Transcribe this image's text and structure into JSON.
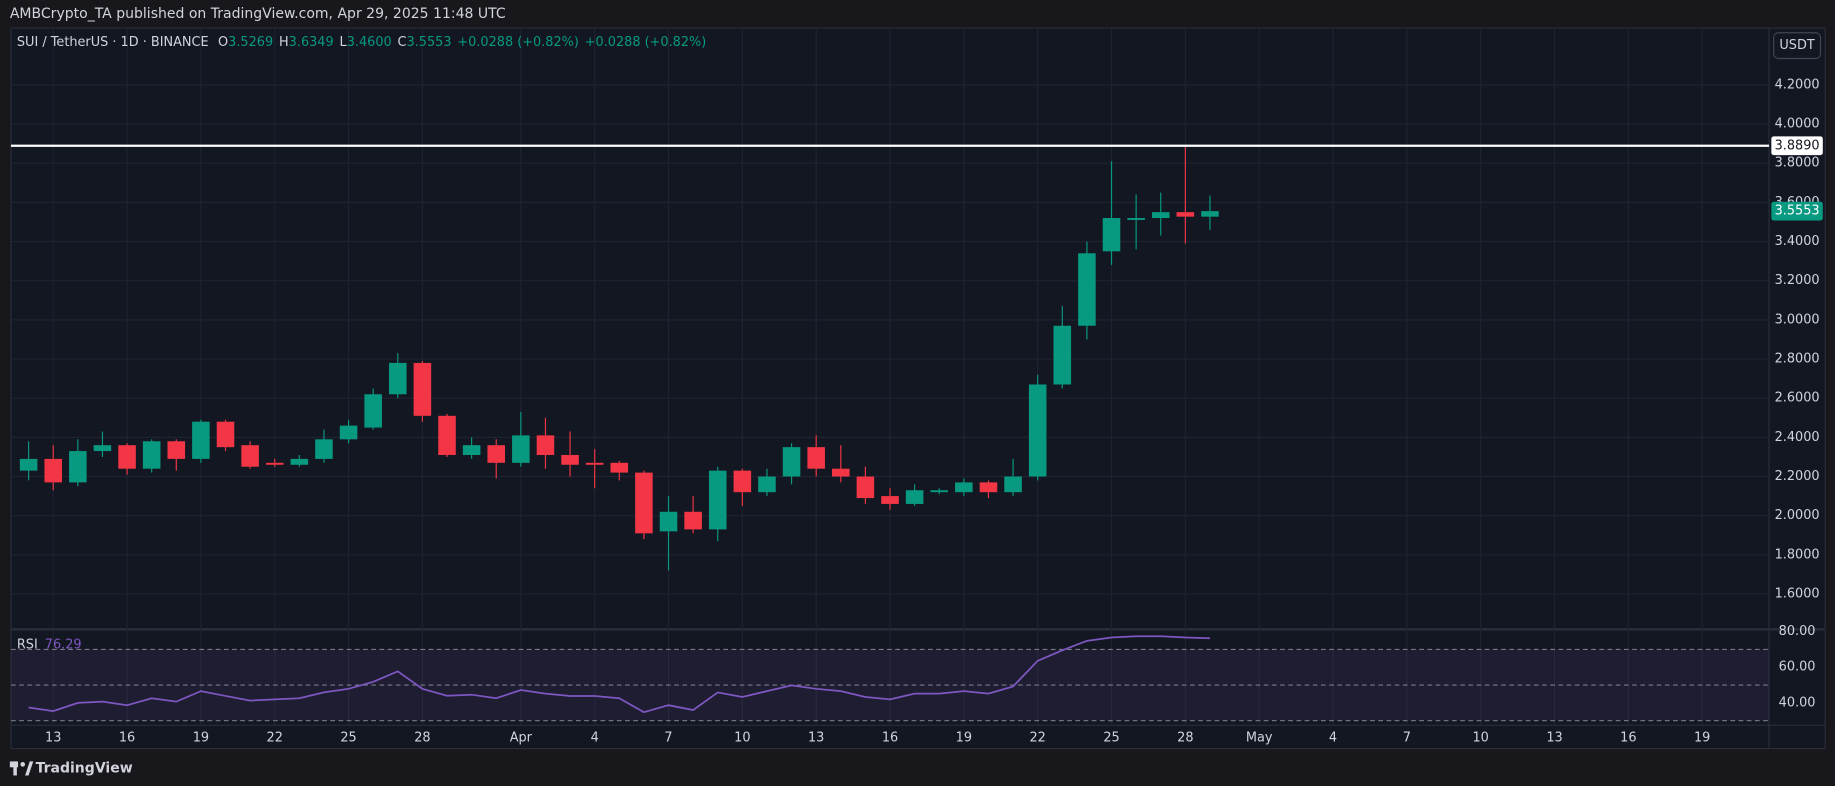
{
  "header": {
    "published": "AMBCrypto_TA published on TradingView.com, Apr 29, 2025 11:48 UTC",
    "brand": "TradingView"
  },
  "chart_data": {
    "type": "candlestick",
    "title": "SUI / TetherUS · 1D · BINANCE",
    "legend": {
      "items": [
        {
          "label": "O",
          "value": "3.5269"
        },
        {
          "label": "H",
          "value": "3.6349"
        },
        {
          "label": "L",
          "value": "3.4600"
        },
        {
          "label": "C",
          "value": "3.5553"
        }
      ],
      "changes": [
        "+0.0288 (+0.82%)",
        "+0.0288 (+0.82%)"
      ]
    },
    "axis_unit": "USDT",
    "categories": [
      "Mar 12",
      "Mar 13",
      "Mar 14",
      "Mar 15",
      "Mar 16",
      "Mar 17",
      "Mar 18",
      "Mar 19",
      "Mar 20",
      "Mar 21",
      "Mar 22",
      "Mar 23",
      "Mar 24",
      "Mar 25",
      "Mar 26",
      "Mar 27",
      "Mar 28",
      "Mar 29",
      "Mar 30",
      "Mar 31",
      "Apr 1",
      "Apr 2",
      "Apr 3",
      "Apr 4",
      "Apr 5",
      "Apr 6",
      "Apr 7",
      "Apr 8",
      "Apr 9",
      "Apr 10",
      "Apr 11",
      "Apr 12",
      "Apr 13",
      "Apr 14",
      "Apr 15",
      "Apr 16",
      "Apr 17",
      "Apr 18",
      "Apr 19",
      "Apr 20",
      "Apr 21",
      "Apr 22",
      "Apr 23",
      "Apr 24",
      "Apr 25",
      "Apr 26",
      "Apr 27",
      "Apr 28",
      "Apr 29"
    ],
    "open": [
      2.23,
      2.29,
      2.17,
      2.33,
      2.36,
      2.24,
      2.38,
      2.29,
      2.48,
      2.36,
      2.27,
      2.26,
      2.29,
      2.39,
      2.45,
      2.62,
      2.78,
      2.51,
      2.31,
      2.36,
      2.27,
      2.41,
      2.31,
      2.27,
      2.27,
      2.22,
      1.92,
      2.02,
      1.93,
      2.23,
      2.12,
      2.2,
      2.35,
      2.24,
      2.2,
      2.1,
      2.06,
      2.12,
      2.12,
      2.17,
      2.12,
      2.2,
      2.67,
      2.97,
      3.35,
      3.51,
      3.52,
      3.55,
      3.5269
    ],
    "high": [
      2.38,
      2.36,
      2.39,
      2.43,
      2.37,
      2.39,
      2.39,
      2.49,
      2.49,
      2.38,
      2.29,
      2.31,
      2.44,
      2.49,
      2.65,
      2.83,
      2.79,
      2.52,
      2.4,
      2.39,
      2.53,
      2.5,
      2.43,
      2.34,
      2.28,
      2.23,
      2.1,
      2.1,
      2.25,
      2.24,
      2.24,
      2.37,
      2.41,
      2.36,
      2.25,
      2.14,
      2.16,
      2.14,
      2.19,
      2.18,
      2.29,
      2.72,
      3.07,
      3.4,
      3.81,
      3.64,
      3.65,
      3.889,
      3.6349
    ],
    "low": [
      2.18,
      2.13,
      2.15,
      2.3,
      2.21,
      2.22,
      2.23,
      2.27,
      2.33,
      2.24,
      2.25,
      2.25,
      2.27,
      2.37,
      2.44,
      2.6,
      2.48,
      2.3,
      2.29,
      2.19,
      2.25,
      2.24,
      2.2,
      2.14,
      2.18,
      1.88,
      1.72,
      1.91,
      1.87,
      2.05,
      2.1,
      2.16,
      2.2,
      2.17,
      2.06,
      2.03,
      2.05,
      2.11,
      2.1,
      2.09,
      2.1,
      2.18,
      2.65,
      2.9,
      3.28,
      3.36,
      3.43,
      3.39,
      3.46
    ],
    "close": [
      2.29,
      2.17,
      2.33,
      2.36,
      2.24,
      2.38,
      2.29,
      2.48,
      2.35,
      2.25,
      2.26,
      2.29,
      2.39,
      2.46,
      2.62,
      2.78,
      2.51,
      2.31,
      2.36,
      2.27,
      2.41,
      2.31,
      2.26,
      2.26,
      2.22,
      1.91,
      2.02,
      1.93,
      2.23,
      2.12,
      2.2,
      2.35,
      2.24,
      2.2,
      2.09,
      2.06,
      2.13,
      2.13,
      2.17,
      2.12,
      2.2,
      2.67,
      2.97,
      3.34,
      3.52,
      3.52,
      3.55,
      3.5269,
      3.5553
    ],
    "colors": {
      "up": "#089981",
      "down": "#f23645"
    },
    "ylim": [
      1.42,
      4.49
    ],
    "yticks": [
      {
        "value": 1.6,
        "label": "1.6000"
      },
      {
        "value": 1.8,
        "label": "1.8000"
      },
      {
        "value": 2,
        "label": "2.0000"
      },
      {
        "value": 2.2,
        "label": "2.2000"
      },
      {
        "value": 2.4,
        "label": "2.4000"
      },
      {
        "value": 2.6,
        "label": "2.6000"
      },
      {
        "value": 2.8,
        "label": "2.8000"
      },
      {
        "value": 3,
        "label": "3.0000"
      },
      {
        "value": 3.2,
        "label": "3.2000"
      },
      {
        "value": 3.4,
        "label": "3.4000"
      },
      {
        "value": 3.6,
        "label": "3.6000"
      },
      {
        "value": 3.8,
        "label": "3.8000"
      },
      {
        "value": 4,
        "label": "4.0000"
      },
      {
        "value": 4.2,
        "label": "4.2000"
      }
    ],
    "xlim": [
      "Mar 11",
      "May 22"
    ],
    "xticks": [
      {
        "value": "Mar 13",
        "label": "13"
      },
      {
        "value": "Mar 16",
        "label": "16"
      },
      {
        "value": "Mar 19",
        "label": "19"
      },
      {
        "value": "Mar 22",
        "label": "22"
      },
      {
        "value": "Mar 25",
        "label": "25"
      },
      {
        "value": "Mar 28",
        "label": "28"
      },
      {
        "value": "Apr 1",
        "label": "Apr"
      },
      {
        "value": "Apr 4",
        "label": "4"
      },
      {
        "value": "Apr 7",
        "label": "7"
      },
      {
        "value": "Apr 10",
        "label": "10"
      },
      {
        "value": "Apr 13",
        "label": "13"
      },
      {
        "value": "Apr 16",
        "label": "16"
      },
      {
        "value": "Apr 19",
        "label": "19"
      },
      {
        "value": "Apr 22",
        "label": "22"
      },
      {
        "value": "Apr 25",
        "label": "25"
      },
      {
        "value": "Apr 28",
        "label": "28"
      },
      {
        "value": "May 1",
        "label": "May"
      },
      {
        "value": "May 4",
        "label": "4"
      },
      {
        "value": "May 7",
        "label": "7"
      },
      {
        "value": "May 10",
        "label": "10"
      },
      {
        "value": "May 13",
        "label": "13"
      },
      {
        "value": "May 16",
        "label": "16"
      },
      {
        "value": "May 19",
        "label": "19"
      }
    ],
    "grid": true,
    "lines": [
      {
        "value": 3.889,
        "label": "3.8890",
        "color": "#ffffff"
      }
    ],
    "last_price": {
      "value": 3.5553,
      "label": "3.5553"
    },
    "rsi": {
      "name": "RSI",
      "value_label": "76.29",
      "color": "#7e57c2",
      "values": [
        37.4,
        35.4,
        40,
        40.7,
        38.7,
        42.6,
        40.7,
        46.6,
        43.9,
        41.3,
        42,
        42.6,
        45.9,
        47.9,
        51.8,
        57.7,
        47.9,
        44,
        44.6,
        42.6,
        47.2,
        45.2,
        43.9,
        43.9,
        42.6,
        34.8,
        38.7,
        36,
        45.9,
        43.3,
        46.6,
        49.8,
        47.9,
        46.6,
        43.3,
        42,
        45.2,
        45.2,
        46.6,
        45.2,
        49.2,
        63.6,
        69.5,
        74.8,
        76.7,
        77.4,
        77.4,
        76.7,
        76.29
      ],
      "ylim": [
        27.5,
        81.3
      ],
      "yticks": [
        {
          "value": 40,
          "label": "40.00"
        },
        {
          "value": 60,
          "label": "60.00"
        },
        {
          "value": 80,
          "label": "80.00"
        }
      ],
      "bands": [
        70,
        50,
        30
      ]
    }
  }
}
